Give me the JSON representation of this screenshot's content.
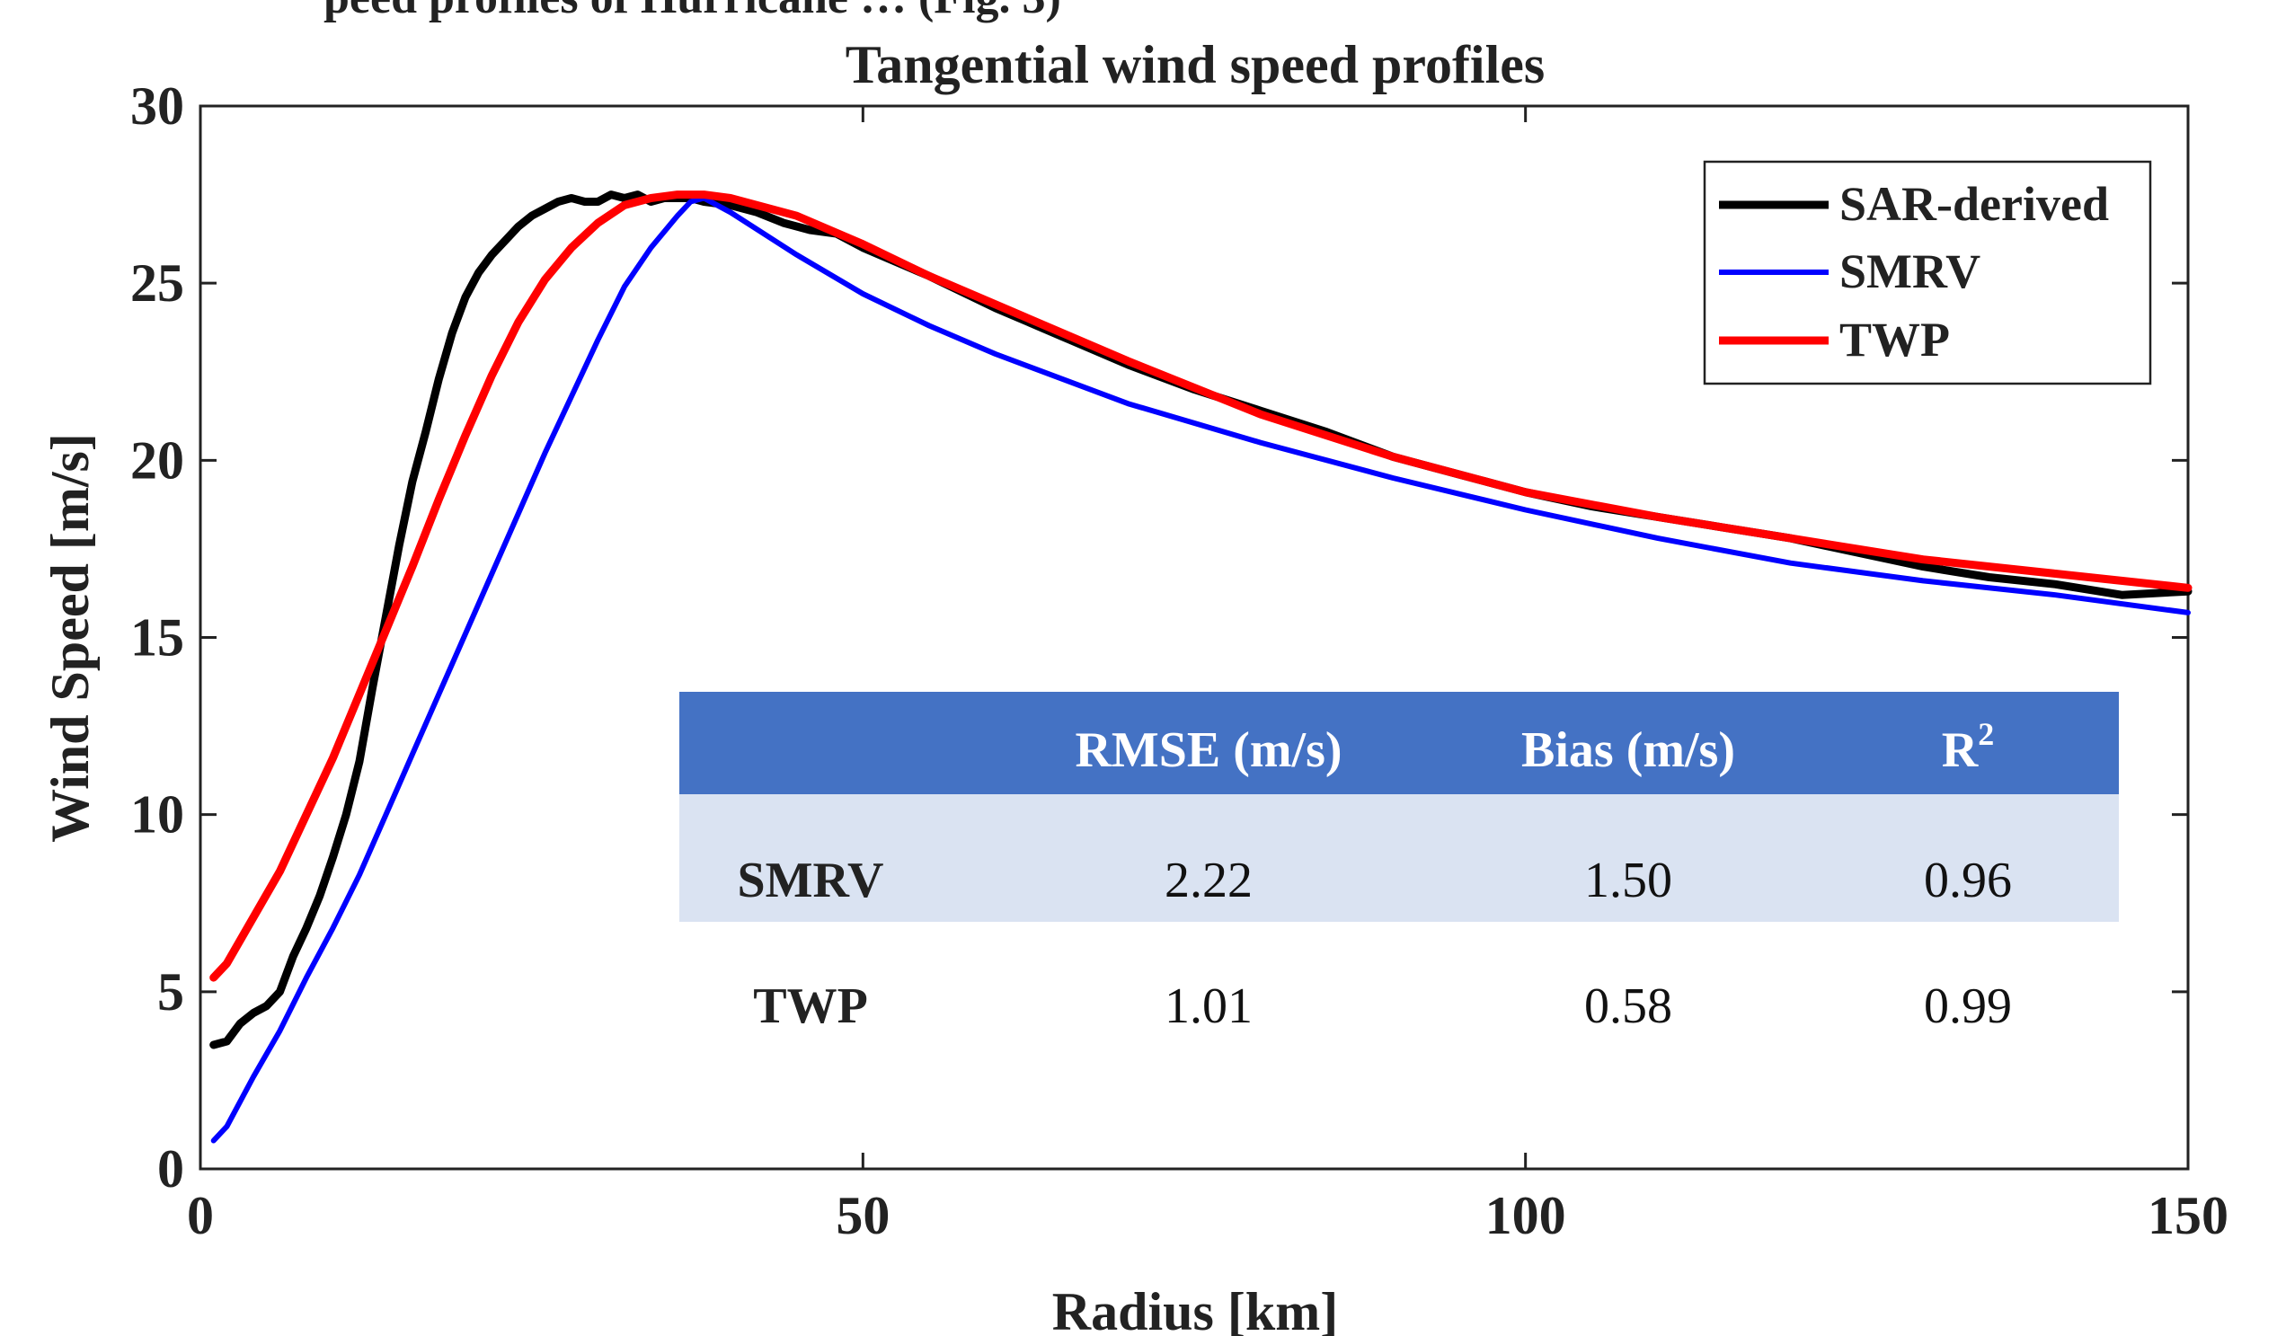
{
  "header_fragment": "peed profiles of Hurricane … (Fig. 3)",
  "chart_data": {
    "type": "line",
    "title": "Tangential wind speed profiles",
    "xlabel": "Radius [km]",
    "ylabel": "Wind Speed [m/s]",
    "xlim": [
      0,
      150
    ],
    "ylim": [
      0,
      30
    ],
    "xticks": [
      0,
      50,
      100,
      150
    ],
    "yticks": [
      0,
      5,
      10,
      15,
      20,
      25,
      30
    ],
    "grid": false,
    "legend_position": "top-right",
    "series": [
      {
        "name": "SAR-derived",
        "color": "#000000",
        "x": [
          1,
          2,
          3,
          4,
          5,
          6,
          7,
          8,
          9,
          10,
          11,
          12,
          13,
          14,
          15,
          16,
          17,
          18,
          19,
          20,
          21,
          22,
          23,
          24,
          25,
          26,
          27,
          28,
          29,
          30,
          31,
          32,
          33,
          34,
          35,
          36,
          37,
          38,
          40,
          42,
          44,
          46,
          48,
          50,
          55,
          60,
          65,
          70,
          75,
          80,
          85,
          90,
          95,
          100,
          105,
          110,
          115,
          120,
          125,
          130,
          135,
          140,
          145,
          150
        ],
        "y": [
          3.5,
          3.6,
          4.1,
          4.4,
          4.6,
          5.0,
          6.0,
          6.8,
          7.7,
          8.8,
          10.0,
          11.5,
          13.6,
          15.6,
          17.6,
          19.4,
          20.8,
          22.3,
          23.6,
          24.6,
          25.3,
          25.8,
          26.2,
          26.6,
          26.9,
          27.1,
          27.3,
          27.4,
          27.3,
          27.3,
          27.5,
          27.4,
          27.5,
          27.3,
          27.4,
          27.4,
          27.4,
          27.3,
          27.2,
          27.0,
          26.7,
          26.5,
          26.4,
          26.0,
          25.2,
          24.3,
          23.5,
          22.7,
          22.0,
          21.4,
          20.8,
          20.1,
          19.6,
          19.1,
          18.7,
          18.4,
          18.1,
          17.8,
          17.4,
          17.0,
          16.7,
          16.5,
          16.2,
          16.3
        ]
      },
      {
        "name": "SMRV",
        "color": "#0000ff",
        "x": [
          1,
          2,
          4,
          6,
          8,
          10,
          12,
          14,
          16,
          18,
          20,
          22,
          24,
          26,
          28,
          30,
          32,
          34,
          36,
          37,
          38,
          40,
          45,
          50,
          55,
          60,
          70,
          80,
          90,
          100,
          110,
          120,
          130,
          140,
          150
        ],
        "y": [
          0.8,
          1.2,
          2.6,
          3.9,
          5.4,
          6.8,
          8.3,
          10.0,
          11.7,
          13.4,
          15.1,
          16.8,
          18.5,
          20.2,
          21.8,
          23.4,
          24.9,
          26.0,
          26.9,
          27.3,
          27.4,
          27.0,
          25.8,
          24.7,
          23.8,
          23.0,
          21.6,
          20.5,
          19.5,
          18.6,
          17.8,
          17.1,
          16.6,
          16.2,
          15.7
        ]
      },
      {
        "name": "TWP",
        "color": "#ff0000",
        "x": [
          1,
          2,
          4,
          6,
          8,
          10,
          12,
          14,
          16,
          18,
          20,
          22,
          24,
          26,
          28,
          30,
          32,
          34,
          36,
          38,
          40,
          45,
          50,
          55,
          60,
          70,
          80,
          90,
          100,
          110,
          120,
          130,
          140,
          150
        ],
        "y": [
          5.4,
          5.8,
          7.1,
          8.4,
          10.0,
          11.6,
          13.4,
          15.2,
          17.0,
          18.9,
          20.7,
          22.4,
          23.9,
          25.1,
          26.0,
          26.7,
          27.2,
          27.4,
          27.5,
          27.5,
          27.4,
          26.9,
          26.1,
          25.2,
          24.4,
          22.8,
          21.3,
          20.1,
          19.1,
          18.4,
          17.8,
          17.2,
          16.8,
          16.4
        ]
      }
    ]
  },
  "stats_table": {
    "header_color": "#4472c4",
    "band_color": "#dae3f2",
    "columns": [
      "",
      "RMSE (m/s)",
      "Bias (m/s)",
      "R"
    ],
    "r_superscript": "2",
    "rows": [
      {
        "model": "SMRV",
        "rmse": "2.22",
        "bias": "1.50",
        "r2": "0.96"
      },
      {
        "model": "TWP",
        "rmse": "1.01",
        "bias": "0.58",
        "r2": "0.99"
      }
    ]
  }
}
